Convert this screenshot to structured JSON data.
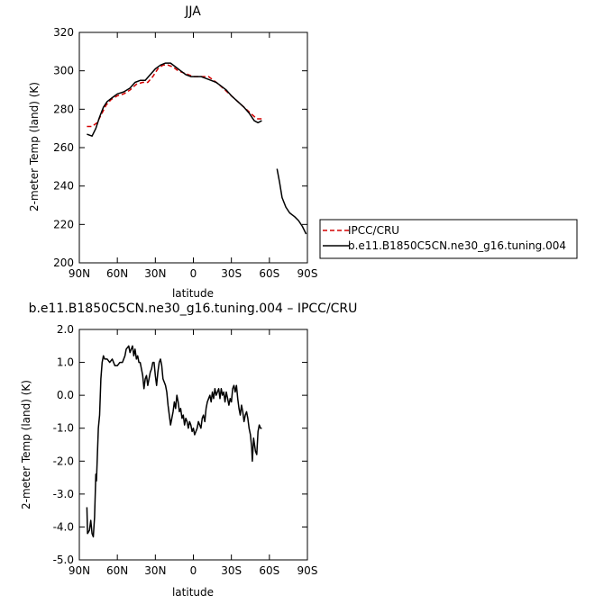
{
  "chart_data": [
    {
      "type": "line",
      "title": "JJA",
      "xlabel": "latitude",
      "ylabel": "2-meter Temp (land) (K)",
      "xlim": [
        90,
        -90
      ],
      "ylim": [
        200,
        320
      ],
      "xticks": [
        90,
        60,
        30,
        0,
        -30,
        -60,
        -90
      ],
      "xtick_labels": [
        "90N",
        "60N",
        "30N",
        "0",
        "30S",
        "60S",
        "90S"
      ],
      "yticks": [
        200,
        220,
        240,
        260,
        280,
        300,
        320
      ],
      "ytick_labels": [
        "200",
        "220",
        "240",
        "260",
        "280",
        "300",
        "320"
      ],
      "legend_position": "right",
      "series": [
        {
          "name": "IPCC/CRU",
          "color": "#d40000",
          "dash": true,
          "segments": [
            [
              [
                84,
                271
              ],
              [
                80,
                271
              ],
              [
                76,
                273
              ],
              [
                72,
                278
              ],
              [
                69,
                282
              ],
              [
                65,
                285
              ],
              [
                60,
                287
              ],
              [
                55,
                288
              ],
              [
                50,
                290
              ],
              [
                45,
                293
              ],
              [
                40,
                294
              ],
              [
                36,
                294
              ],
              [
                32,
                297
              ],
              [
                28,
                301
              ],
              [
                24,
                303
              ],
              [
                20,
                303
              ],
              [
                16,
                302
              ],
              [
                12,
                300
              ],
              [
                8,
                299
              ],
              [
                4,
                298
              ],
              [
                0,
                297
              ],
              [
                -4,
                297
              ],
              [
                -8,
                297
              ],
              [
                -12,
                297
              ],
              [
                -16,
                295
              ],
              [
                -20,
                293
              ],
              [
                -25,
                290
              ],
              [
                -30,
                287
              ],
              [
                -35,
                284
              ],
              [
                -40,
                281
              ],
              [
                -45,
                278
              ],
              [
                -50,
                275
              ],
              [
                -54,
                275
              ],
              [
                -56,
                275
              ]
            ]
          ]
        },
        {
          "name": "b.e11.B1850C5CN.ne30_g16.tuning.004",
          "color": "#000000",
          "dash": false,
          "segments": [
            [
              [
                84,
                267
              ],
              [
                80,
                266
              ],
              [
                77,
                270
              ],
              [
                74,
                276
              ],
              [
                71,
                281
              ],
              [
                68,
                284
              ],
              [
                64,
                286
              ],
              [
                60,
                288
              ],
              [
                55,
                289
              ],
              [
                50,
                291
              ],
              [
                46,
                294
              ],
              [
                42,
                295
              ],
              [
                38,
                295
              ],
              [
                34,
                298
              ],
              [
                30,
                301
              ],
              [
                26,
                303
              ],
              [
                22,
                304
              ],
              [
                18,
                304
              ],
              [
                14,
                302
              ],
              [
                10,
                300
              ],
              [
                6,
                298
              ],
              [
                2,
                297
              ],
              [
                -2,
                297
              ],
              [
                -6,
                297
              ],
              [
                -10,
                296
              ],
              [
                -14,
                295
              ],
              [
                -18,
                294
              ],
              [
                -22,
                292
              ],
              [
                -26,
                290
              ],
              [
                -30,
                287
              ],
              [
                -35,
                284
              ],
              [
                -40,
                281
              ],
              [
                -44,
                278
              ],
              [
                -48,
                274
              ],
              [
                -51,
                273
              ],
              [
                -54,
                274
              ]
            ],
            [
              [
                -66,
                249
              ],
              [
                -68,
                242
              ],
              [
                -70,
                234
              ],
              [
                -73,
                229
              ],
              [
                -76,
                226
              ],
              [
                -80,
                224
              ],
              [
                -83,
                222
              ],
              [
                -86,
                219
              ],
              [
                -89,
                215
              ]
            ]
          ]
        }
      ]
    },
    {
      "type": "line",
      "title": "b.e11.B1850C5CN.ne30_g16.tuning.004 – IPCC/CRU",
      "xlabel": "latitude",
      "ylabel": "2-meter Temp (land) (K)",
      "xlim": [
        90,
        -90
      ],
      "ylim": [
        -5,
        2
      ],
      "xticks": [
        90,
        60,
        30,
        0,
        -30,
        -60,
        -90
      ],
      "xtick_labels": [
        "90N",
        "60N",
        "30N",
        "0",
        "30S",
        "60S",
        "90S"
      ],
      "yticks": [
        -5,
        -4,
        -3,
        -2,
        -1,
        0,
        1,
        2
      ],
      "ytick_labels": [
        "-5.0",
        "-4.0",
        "-3.0",
        "-2.0",
        "-1.0",
        "0.0",
        "1.0",
        "2.0"
      ],
      "series": [
        {
          "color": "#000000",
          "dash": false,
          "segments": [
            [
              [
                84,
                -3.4
              ],
              [
                83.5,
                -4.2
              ],
              [
                82,
                -4.1
              ],
              [
                81,
                -3.8
              ],
              [
                80,
                -4.2
              ],
              [
                79,
                -4.3
              ],
              [
                78,
                -3.7
              ],
              [
                77,
                -2.4
              ],
              [
                76.5,
                -2.6
              ],
              [
                75,
                -1.0
              ],
              [
                74,
                -0.6
              ],
              [
                73,
                0.5
              ],
              [
                72,
                1.0
              ],
              [
                71,
                1.2
              ],
              [
                70,
                1.1
              ],
              [
                68,
                1.1
              ],
              [
                66,
                1.0
              ],
              [
                64,
                1.1
              ],
              [
                62,
                0.9
              ],
              [
                60,
                0.9
              ],
              [
                58,
                1.0
              ],
              [
                56,
                1.0
              ],
              [
                54,
                1.2
              ],
              [
                53,
                1.4
              ],
              [
                51,
                1.5
              ],
              [
                50,
                1.3
              ],
              [
                49,
                1.4
              ],
              [
                48,
                1.5
              ],
              [
                47,
                1.2
              ],
              [
                46,
                1.4
              ],
              [
                45,
                1.1
              ],
              [
                44,
                1.2
              ],
              [
                43,
                1.0
              ],
              [
                42,
                1.0
              ],
              [
                41,
                0.8
              ],
              [
                40,
                0.6
              ],
              [
                39,
                0.2
              ],
              [
                38,
                0.5
              ],
              [
                37,
                0.6
              ],
              [
                36,
                0.3
              ],
              [
                35,
                0.5
              ],
              [
                34,
                0.7
              ],
              [
                33,
                0.8
              ],
              [
                32,
                1.0
              ],
              [
                31,
                1.0
              ],
              [
                30,
                0.6
              ],
              [
                29,
                0.3
              ],
              [
                28,
                0.7
              ],
              [
                27,
                1.0
              ],
              [
                26,
                1.1
              ],
              [
                25,
                0.9
              ],
              [
                24,
                0.5
              ],
              [
                23,
                0.4
              ],
              [
                22,
                0.3
              ],
              [
                21,
                0.1
              ],
              [
                20,
                -0.3
              ],
              [
                19,
                -0.6
              ],
              [
                18,
                -0.9
              ],
              [
                17,
                -0.7
              ],
              [
                16,
                -0.5
              ],
              [
                15,
                -0.2
              ],
              [
                14,
                -0.4
              ],
              [
                13,
                0.0
              ],
              [
                12,
                -0.2
              ],
              [
                11,
                -0.5
              ],
              [
                10,
                -0.4
              ],
              [
                9,
                -0.7
              ],
              [
                8,
                -0.6
              ],
              [
                7,
                -0.9
              ],
              [
                6,
                -0.7
              ],
              [
                5,
                -0.8
              ],
              [
                4,
                -1.0
              ],
              [
                3,
                -0.8
              ],
              [
                2,
                -0.9
              ],
              [
                1,
                -1.1
              ],
              [
                0,
                -1.0
              ],
              [
                -1,
                -1.2
              ],
              [
                -2,
                -1.1
              ],
              [
                -3,
                -1.0
              ],
              [
                -4,
                -0.8
              ],
              [
                -5,
                -0.9
              ],
              [
                -6,
                -1.0
              ],
              [
                -7,
                -0.7
              ],
              [
                -8,
                -0.6
              ],
              [
                -9,
                -0.8
              ],
              [
                -10,
                -0.4
              ],
              [
                -11,
                -0.2
              ],
              [
                -12,
                -0.1
              ],
              [
                -13,
                0.0
              ],
              [
                -14,
                -0.2
              ],
              [
                -15,
                0.1
              ],
              [
                -16,
                -0.1
              ],
              [
                -17,
                0.2
              ],
              [
                -18,
                0.0
              ],
              [
                -19,
                0.1
              ],
              [
                -20,
                0.2
              ],
              [
                -21,
                -0.1
              ],
              [
                -22,
                0.2
              ],
              [
                -23,
                0.0
              ],
              [
                -24,
                0.1
              ],
              [
                -25,
                -0.2
              ],
              [
                -26,
                0.1
              ],
              [
                -27,
                -0.1
              ],
              [
                -28,
                -0.3
              ],
              [
                -29,
                -0.1
              ],
              [
                -30,
                -0.2
              ],
              [
                -31,
                0.2
              ],
              [
                -32,
                0.3
              ],
              [
                -33,
                0.1
              ],
              [
                -34,
                0.3
              ],
              [
                -35,
                -0.1
              ],
              [
                -36,
                -0.4
              ],
              [
                -37,
                -0.6
              ],
              [
                -38,
                -0.3
              ],
              [
                -39,
                -0.5
              ],
              [
                -40,
                -0.8
              ],
              [
                -41,
                -0.6
              ],
              [
                -42,
                -0.5
              ],
              [
                -43,
                -0.7
              ],
              [
                -44,
                -1.0
              ],
              [
                -45,
                -1.2
              ],
              [
                -46,
                -1.6
              ],
              [
                -46.5,
                -2.0
              ],
              [
                -47.5,
                -1.3
              ],
              [
                -49,
                -1.7
              ],
              [
                -50,
                -1.8
              ],
              [
                -51,
                -1.1
              ],
              [
                -52,
                -0.9
              ],
              [
                -53,
                -1.0
              ],
              [
                -54,
                -1.0
              ]
            ]
          ]
        }
      ]
    }
  ]
}
